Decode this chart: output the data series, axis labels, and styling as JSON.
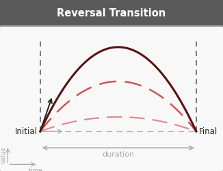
{
  "title": "Reversal Transition",
  "title_bg_top": "#5a5a5a",
  "title_bg_bot": "#3a3a3a",
  "title_color": "#ffffff",
  "bg_color": "#e8e8e8",
  "plot_bg": "#f8f8f8",
  "border_color": "#999999",
  "initial_label": "Initial",
  "final_label": "Final",
  "duration_label": "duration",
  "value_label": "value",
  "time_label": "time",
  "dashed_arc_color1": "#cc5555",
  "dashed_arc_color2": "#dd7777",
  "solid_arc_color": "#5a1010",
  "arrow_color": "#222222",
  "gray_color": "#aaaaaa",
  "dashed_vert_color": "#555555",
  "x_start": 1.8,
  "x_end": 8.8,
  "y_base": 1.5,
  "arc_height_solid": 3.2,
  "arc_height_dash1": 1.9,
  "arc_height_dash2": 0.55,
  "xlim": [
    0,
    10
  ],
  "ylim": [
    0,
    5.5
  ]
}
